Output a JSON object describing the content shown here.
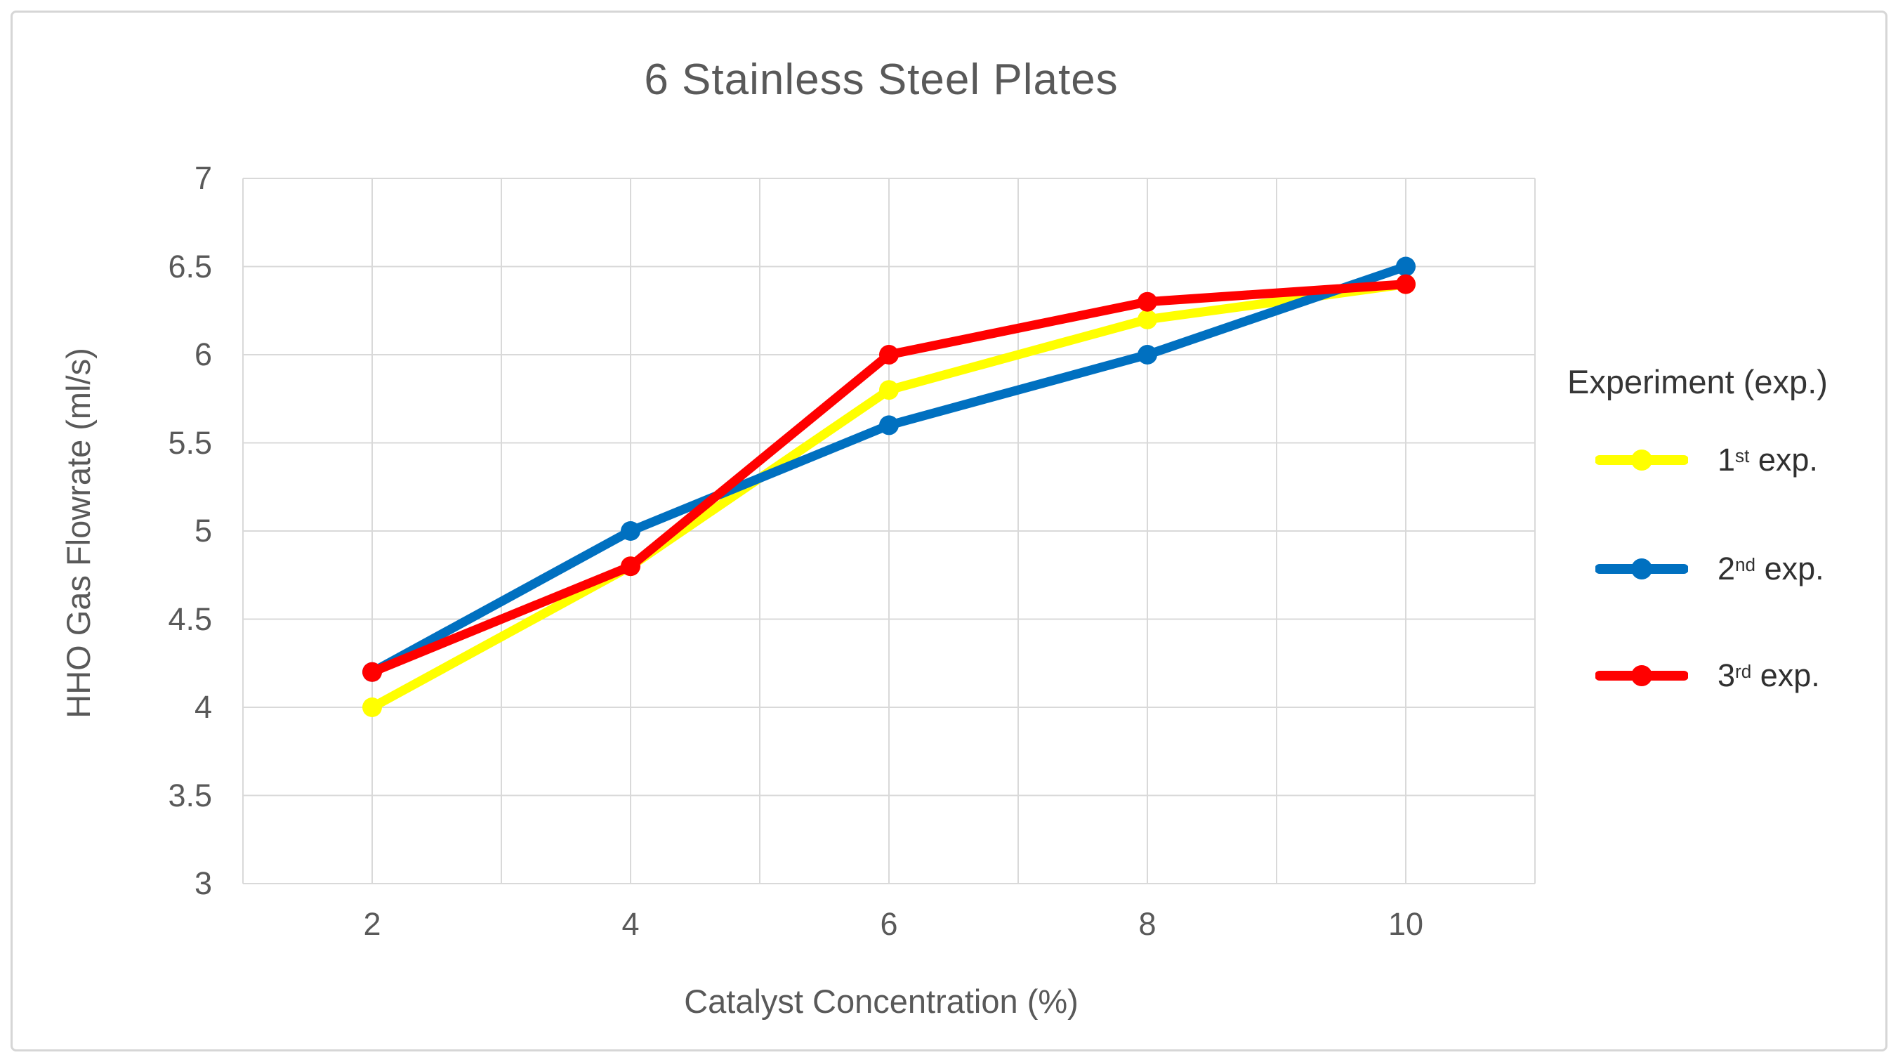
{
  "figure": {
    "background": "#ffffff",
    "border_color": "#d6d6d6"
  },
  "chart_data": {
    "type": "line",
    "title": "6 Stainless Steel Plates",
    "xlabel": "Catalyst Concentration (%)",
    "ylabel": "HHO Gas Flowrate (ml/s)",
    "x": [
      2,
      4,
      6,
      8,
      10
    ],
    "x_ticks": [
      "2",
      "4",
      "6",
      "8",
      "10"
    ],
    "y_ticks": [
      "7",
      "6.5",
      "6",
      "5.5",
      "5",
      "4.5",
      "4",
      "3.5",
      "3"
    ],
    "xlim": [
      1,
      11
    ],
    "ylim": [
      3,
      7
    ],
    "y_tick_step": 0.5,
    "x_gridline_step": 1,
    "grid": true,
    "legend": {
      "title": "Experiment (exp.)",
      "position": "right"
    },
    "series": [
      {
        "name": "1st exp.",
        "ordinal": "1",
        "ordinal_suffix": "st",
        "label_rest": " exp.",
        "color": "#FFFF00",
        "values": [
          4.0,
          4.8,
          5.8,
          6.2,
          6.4
        ]
      },
      {
        "name": "2nd exp.",
        "ordinal": "2",
        "ordinal_suffix": "nd",
        "label_rest": " exp.",
        "color": "#0070C0",
        "values": [
          4.2,
          5.0,
          5.6,
          6.0,
          6.5
        ]
      },
      {
        "name": "3rd exp.",
        "ordinal": "3",
        "ordinal_suffix": "rd",
        "label_rest": " exp.",
        "color": "#FF0000",
        "values": [
          4.2,
          4.8,
          6.0,
          6.3,
          6.4
        ]
      }
    ],
    "colors": {
      "title_text": "#595959",
      "axis_text": "#595959",
      "legend_text": "#303030",
      "gridline": "#d9d9d9"
    }
  }
}
